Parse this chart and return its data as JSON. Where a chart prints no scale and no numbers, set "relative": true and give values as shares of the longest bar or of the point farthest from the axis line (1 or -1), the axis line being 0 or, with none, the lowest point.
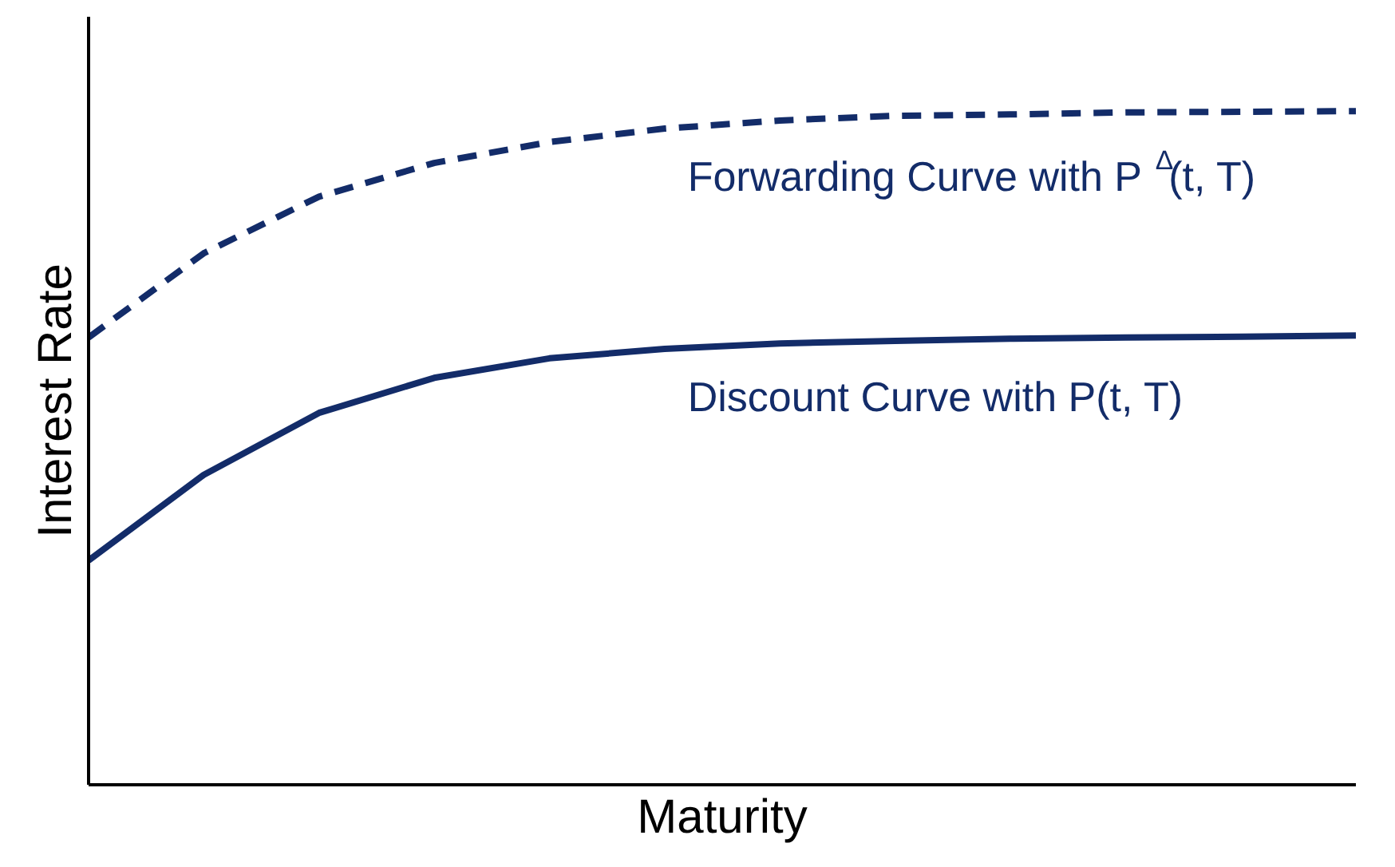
{
  "chart_data": {
    "type": "line",
    "relative": true,
    "xlabel": "Maturity",
    "ylabel": "Interest Rate",
    "legend": false,
    "marker": "none",
    "categories": [
      null,
      null,
      null,
      null,
      null,
      null,
      null,
      null,
      null,
      null,
      null,
      null
    ],
    "series": [
      {
        "name": "Forwarding Curve with P$^{Δ}$(t, T)",
        "color": "#132c69",
        "line_style": "dashed",
        "values": [
          0.664,
          0.789,
          0.873,
          0.923,
          0.954,
          0.974,
          0.986,
          0.993,
          0.995,
          0.998,
          0.999,
          1
        ]
      },
      {
        "name": "Discount Curve with P(t, T)",
        "color": "#132c69",
        "line_style": "solid",
        "values": [
          0.333,
          0.46,
          0.552,
          0.604,
          0.633,
          0.647,
          0.655,
          0.659,
          0.662,
          0.664,
          0.665,
          0.667
        ]
      }
    ]
  }
}
